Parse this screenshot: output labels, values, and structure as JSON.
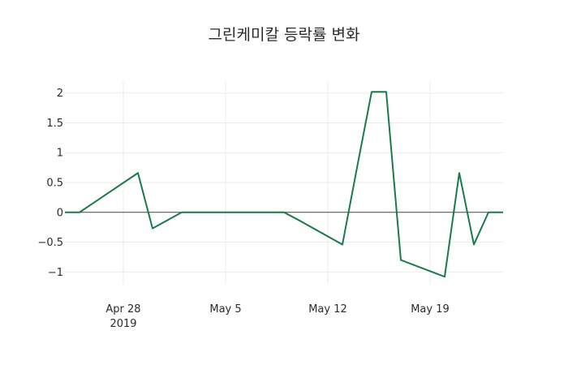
{
  "chart_data": {
    "type": "line",
    "title": "그린케미칼 등락률 변화",
    "xlabel": "",
    "ylabel": "",
    "x": [
      "2019-04-23",
      "2019-04-24",
      "2019-04-25",
      "2019-04-29",
      "2019-04-30",
      "2019-05-02",
      "2019-05-03",
      "2019-05-07",
      "2019-05-08",
      "2019-05-09",
      "2019-05-10",
      "2019-05-13",
      "2019-05-14",
      "2019-05-15",
      "2019-05-16",
      "2019-05-17",
      "2019-05-20",
      "2019-05-21",
      "2019-05-22",
      "2019-05-23",
      "2019-05-24"
    ],
    "series": [
      {
        "values": [
          0.13,
          0.0,
          0.0,
          0.66,
          -0.27,
          0.0,
          0.0,
          0.0,
          0.0,
          0.0,
          -0.13,
          -0.54,
          0.75,
          2.02,
          2.02,
          -0.8,
          -1.08,
          0.66,
          -0.54,
          0.0,
          0.0
        ],
        "color": "#1a7a48"
      }
    ],
    "xlim": [
      "2019-04-24",
      "2019-05-24"
    ],
    "ylim": [
      -1.2,
      2.2
    ],
    "x_ticks": [
      {
        "date": "2019-04-28",
        "label": "Apr 28",
        "sublabel": "2019"
      },
      {
        "date": "2019-05-05",
        "label": "May 5",
        "sublabel": ""
      },
      {
        "date": "2019-05-12",
        "label": "May 12",
        "sublabel": ""
      },
      {
        "date": "2019-05-19",
        "label": "May 19",
        "sublabel": ""
      }
    ],
    "y_ticks": [
      {
        "value": 2,
        "label": "2"
      },
      {
        "value": 1.5,
        "label": "1.5"
      },
      {
        "value": 1,
        "label": "1"
      },
      {
        "value": 0.5,
        "label": "0.5"
      },
      {
        "value": 0,
        "label": "0"
      },
      {
        "value": -0.5,
        "label": "−0.5"
      },
      {
        "value": -1,
        "label": "−1"
      }
    ],
    "grid": true,
    "zero_line": true,
    "legend": "none"
  }
}
